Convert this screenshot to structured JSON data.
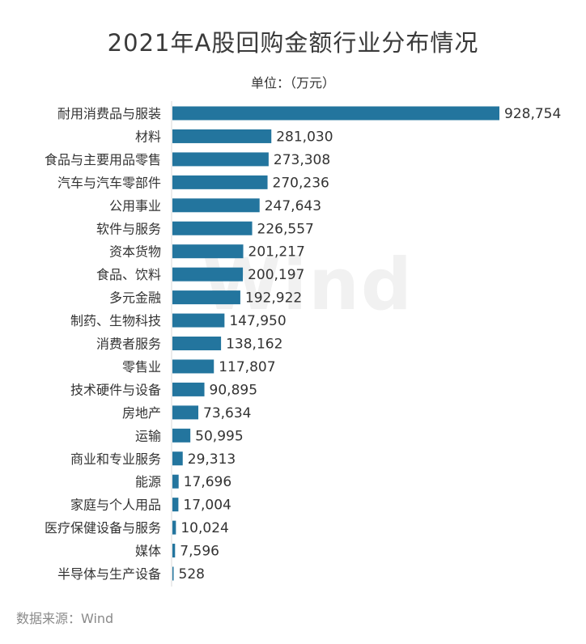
{
  "chart_data": {
    "type": "bar",
    "orientation": "horizontal",
    "title": "2021年A股回购金额行业分布情况",
    "unit_label": "单位：（万元）",
    "watermark": "Wind",
    "source": "数据来源：Wind",
    "bar_color": "#23759e",
    "categories": [
      "耐用消费品与服装",
      "材料",
      "食品与主要用品零售",
      "汽车与汽车零部件",
      "公用事业",
      "软件与服务",
      "资本货物",
      "食品、饮料",
      "多元金融",
      "制药、生物科技",
      "消费者服务",
      "零售业",
      "技术硬件与设备",
      "房地产",
      "运输",
      "商业和专业服务",
      "能源",
      "家庭与个人用品",
      "医疗保健设备与服务",
      "媒体",
      "半导体与生产设备"
    ],
    "values": [
      928754,
      281030,
      273308,
      270236,
      247643,
      226557,
      201217,
      200197,
      192922,
      147950,
      138162,
      117807,
      90895,
      73634,
      50995,
      29313,
      17696,
      17004,
      10024,
      7596,
      528
    ],
    "value_labels": [
      "928,754",
      "281,030",
      "273,308",
      "270,236",
      "247,643",
      "226,557",
      "201,217",
      "200,197",
      "192,922",
      "147,950",
      "138,162",
      "117,807",
      "90,895",
      "73,634",
      "50,995",
      "29,313",
      "17,696",
      "17,004",
      "10,024",
      "7,596",
      "528"
    ],
    "grid": false,
    "legend": "none"
  }
}
